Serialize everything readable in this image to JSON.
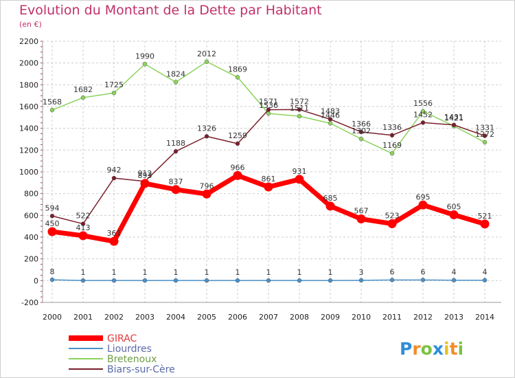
{
  "chart_data": {
    "type": "line",
    "title": "Evolution du Montant de la Dette par Habitant",
    "subtitle": "(en €)",
    "xlabel": "",
    "ylabel": "",
    "x": [
      "2000",
      "2001",
      "2002",
      "2003",
      "2004",
      "2005",
      "2006",
      "2007",
      "2008",
      "2009",
      "2010",
      "2011",
      "2012",
      "2013",
      "2014"
    ],
    "ylim": [
      -200,
      2200
    ],
    "yticks": [
      -200,
      0,
      200,
      400,
      600,
      800,
      1000,
      1200,
      1400,
      1600,
      1800,
      2000,
      2200
    ],
    "grid": true,
    "legend_position": "bottom-left",
    "series": [
      {
        "name": "GIRAC",
        "color": "#ff0000",
        "values": [
          450,
          413,
          361,
          893,
          837,
          796,
          966,
          861,
          931,
          685,
          567,
          523,
          695,
          605,
          521
        ]
      },
      {
        "name": "Liourdres",
        "color": "#4a90c8",
        "values": [
          8,
          1,
          1,
          1,
          1,
          1,
          1,
          1,
          1,
          1,
          3,
          6,
          6,
          4,
          4
        ]
      },
      {
        "name": "Bretenoux",
        "color": "#8bd35a",
        "values": [
          1568,
          1682,
          1725,
          1990,
          1824,
          2012,
          1869,
          1536,
          1511,
          1446,
          1302,
          1169,
          1556,
          1421,
          1272
        ]
      },
      {
        "name": "Biars-sur-Cère",
        "color": "#7a1f2b",
        "values": [
          594,
          522,
          942,
          912,
          1188,
          1326,
          1259,
          1571,
          1572,
          1483,
          1366,
          1336,
          1452,
          1431,
          1331
        ]
      }
    ]
  },
  "logo": {
    "text": "Proxiti"
  }
}
